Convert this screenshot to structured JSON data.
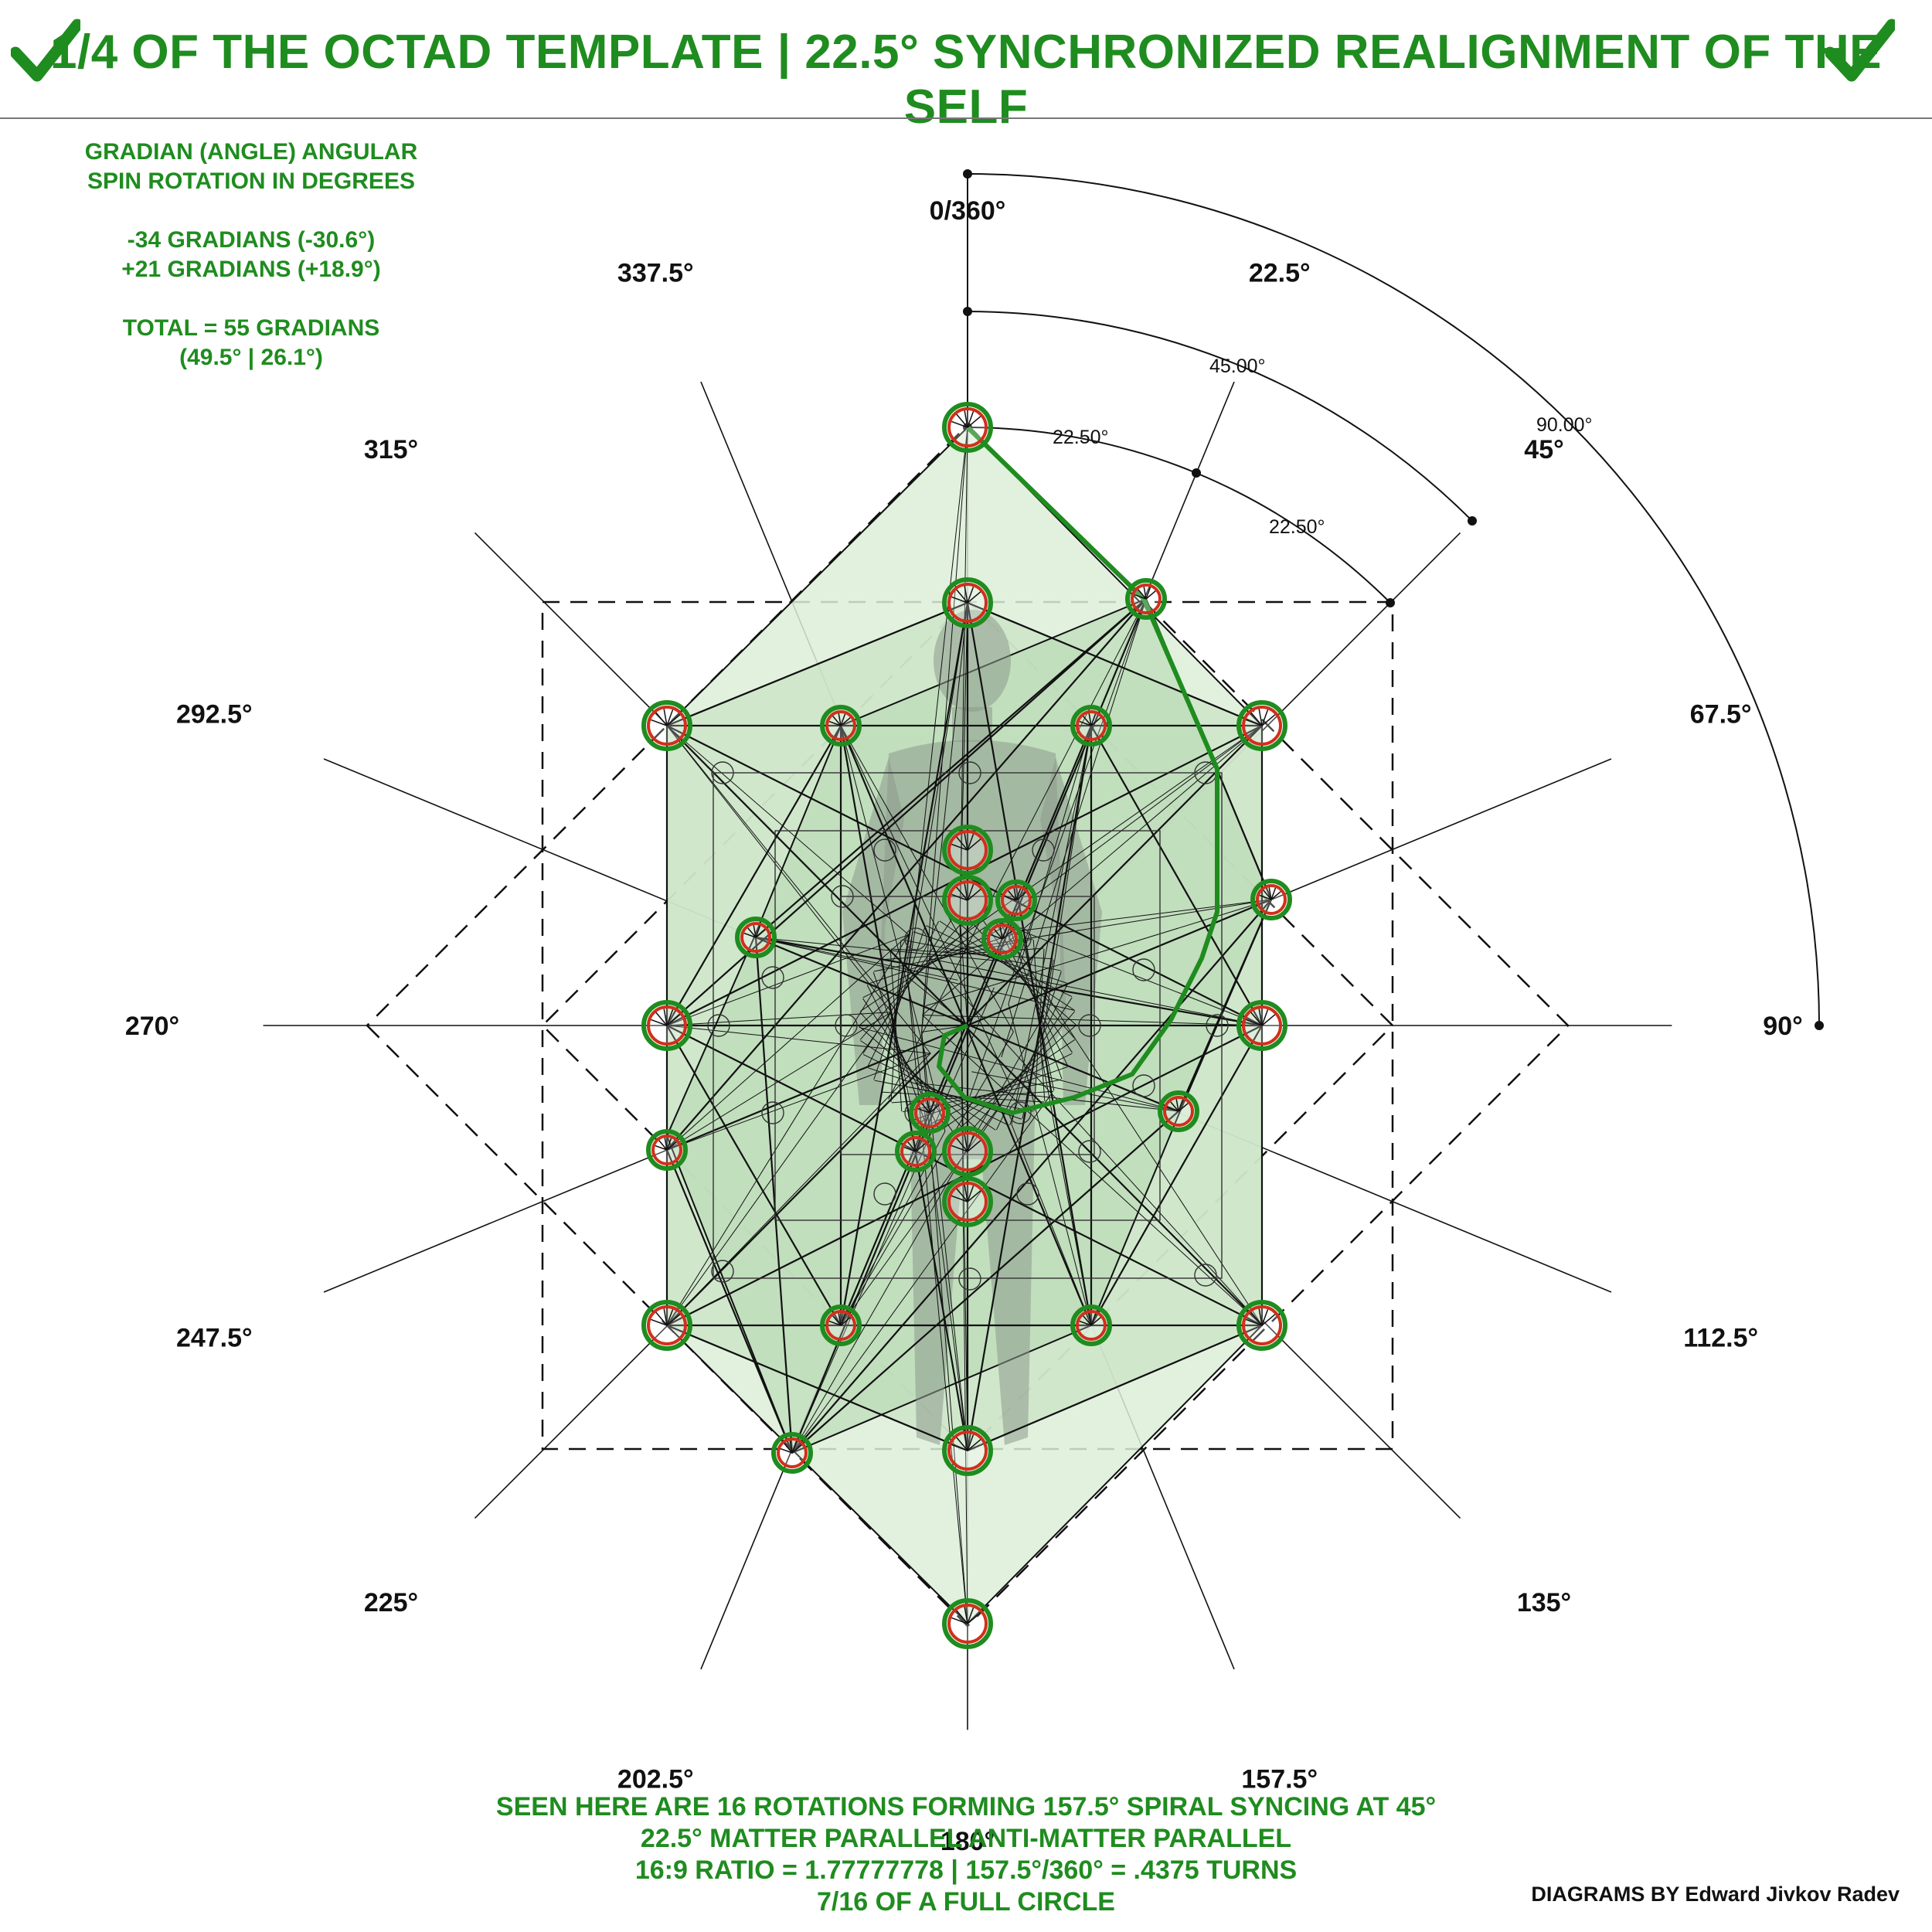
{
  "header": {
    "title": "1/4 OF THE OCTAD TEMPLATE | 22.5° SYNCHRONIZED REALIGNMENT OF THE SELF"
  },
  "info": {
    "line1": "GRADIAN (ANGLE) ANGULAR",
    "line2": "SPIN ROTATION IN DEGREES",
    "line3": "-34 GRADIANS (-30.6°)",
    "line4": "+21 GRADIANS (+18.9°)",
    "line5": "TOTAL = 55 GRADIANS",
    "line6": "(49.5° | 26.1°)"
  },
  "diagram": {
    "angle_labels": [
      {
        "angle": 0,
        "label": "0/360°"
      },
      {
        "angle": 22.5,
        "label": "22.5°"
      },
      {
        "angle": 45,
        "label": "45°"
      },
      {
        "angle": 67.5,
        "label": "67.5°"
      },
      {
        "angle": 90,
        "label": "90°"
      },
      {
        "angle": 112.5,
        "label": "112.5°"
      },
      {
        "angle": 135,
        "label": "135°"
      },
      {
        "angle": 157.5,
        "label": "157.5°"
      },
      {
        "angle": 180,
        "label": "180°"
      },
      {
        "angle": 202.5,
        "label": "202.5°"
      },
      {
        "angle": 225,
        "label": "225°"
      },
      {
        "angle": 247.5,
        "label": "247.5°"
      },
      {
        "angle": 270,
        "label": "270°"
      },
      {
        "angle": 292.5,
        "label": "292.5°"
      },
      {
        "angle": 315,
        "label": "315°"
      },
      {
        "angle": 337.5,
        "label": "337.5°"
      }
    ],
    "arc_labels": {
      "inner_first": "22.50°",
      "inner_second": "22.50°",
      "middle": "45.00°",
      "outer": "90.00°"
    },
    "colors": {
      "accent_green": "#1f8c1f",
      "node_red": "#d0301c",
      "fill_green": "#c9e3c4"
    }
  },
  "footer": {
    "line1": "SEEN HERE ARE 16 ROTATIONS FORMING 157.5° SPIRAL SYNCING AT 45°",
    "line2": "22.5° MATTER PARALLEL ANTI-MATTER PARALLEL",
    "line3": "16:9 RATIO = 1.77777778 | 157.5°/360° = .4375 TURNS",
    "line4": "7/16 OF A FULL CIRCLE"
  },
  "credit": "DIAGRAMS BY Edward Jivkov Radev"
}
